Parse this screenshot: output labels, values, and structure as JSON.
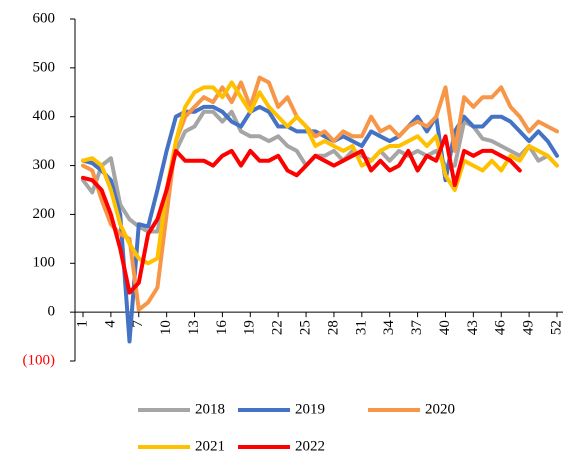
{
  "chart_data": {
    "type": "line",
    "x": [
      1,
      2,
      3,
      4,
      5,
      6,
      7,
      8,
      9,
      10,
      11,
      12,
      13,
      14,
      15,
      16,
      17,
      18,
      19,
      20,
      21,
      22,
      23,
      24,
      25,
      26,
      27,
      28,
      29,
      30,
      31,
      32,
      33,
      34,
      35,
      36,
      37,
      38,
      39,
      40,
      41,
      42,
      43,
      44,
      45,
      46,
      47,
      48,
      49,
      50,
      51,
      52
    ],
    "xlim": [
      1,
      52
    ],
    "xticks": [
      1,
      4,
      7,
      10,
      13,
      16,
      19,
      22,
      25,
      28,
      31,
      34,
      37,
      40,
      43,
      46,
      49,
      52
    ],
    "ylim": [
      -100,
      600
    ],
    "yticks": [
      {
        "value": -100,
        "label": "(100)"
      },
      0,
      100,
      200,
      300,
      400,
      500,
      600
    ],
    "negative_label_color": "#ff0000",
    "grid": false,
    "legend": "bottom",
    "series": [
      {
        "name": "2018",
        "color": "#a5a5a5",
        "values": [
          270,
          245,
          300,
          315,
          220,
          190,
          175,
          165,
          165,
          250,
          330,
          370,
          380,
          410,
          410,
          390,
          410,
          370,
          360,
          360,
          350,
          360,
          340,
          330,
          300,
          320,
          320,
          330,
          310,
          330,
          320,
          310,
          330,
          310,
          330,
          320,
          330,
          320,
          330,
          300,
          300,
          390,
          380,
          355,
          350,
          340,
          330,
          320,
          340,
          310,
          320,
          300
        ]
      },
      {
        "name": "2019",
        "color": "#4472c4",
        "values": [
          310,
          305,
          290,
          270,
          200,
          -60,
          180,
          175,
          250,
          330,
          400,
          410,
          410,
          420,
          420,
          410,
          390,
          380,
          410,
          420,
          410,
          380,
          380,
          370,
          370,
          370,
          360,
          350,
          360,
          350,
          340,
          370,
          360,
          350,
          360,
          380,
          400,
          370,
          400,
          270,
          370,
          400,
          380,
          380,
          400,
          400,
          390,
          370,
          350,
          370,
          350,
          320
        ]
      },
      {
        "name": "2020",
        "color": "#f79646",
        "values": [
          300,
          290,
          230,
          180,
          160,
          150,
          5,
          20,
          50,
          200,
          350,
          400,
          420,
          440,
          430,
          460,
          430,
          470,
          420,
          480,
          470,
          420,
          440,
          400,
          380,
          360,
          370,
          350,
          370,
          360,
          360,
          400,
          370,
          380,
          360,
          380,
          390,
          380,
          400,
          460,
          330,
          440,
          420,
          440,
          440,
          460,
          420,
          400,
          370,
          390,
          380,
          370
        ]
      },
      {
        "name": "2021",
        "color": "#ffc000",
        "values": [
          310,
          315,
          300,
          250,
          180,
          140,
          110,
          100,
          110,
          250,
          350,
          420,
          450,
          460,
          460,
          440,
          470,
          440,
          410,
          450,
          420,
          400,
          380,
          400,
          380,
          340,
          350,
          340,
          330,
          340,
          300,
          310,
          330,
          340,
          340,
          350,
          360,
          340,
          360,
          280,
          250,
          310,
          300,
          290,
          310,
          290,
          320,
          310,
          340,
          330,
          320,
          300
        ]
      },
      {
        "name": "2022",
        "color": "#ff0000",
        "values": [
          275,
          270,
          250,
          200,
          130,
          40,
          60,
          160,
          190,
          250,
          330,
          310,
          310,
          310,
          300,
          320,
          330,
          300,
          330,
          310,
          310,
          320,
          290,
          280,
          300,
          320,
          310,
          300,
          310,
          320,
          330,
          290,
          310,
          290,
          300,
          330,
          290,
          320,
          310,
          360,
          260,
          330,
          320,
          330,
          330,
          320,
          310,
          290,
          null,
          null,
          null,
          null
        ]
      }
    ]
  }
}
